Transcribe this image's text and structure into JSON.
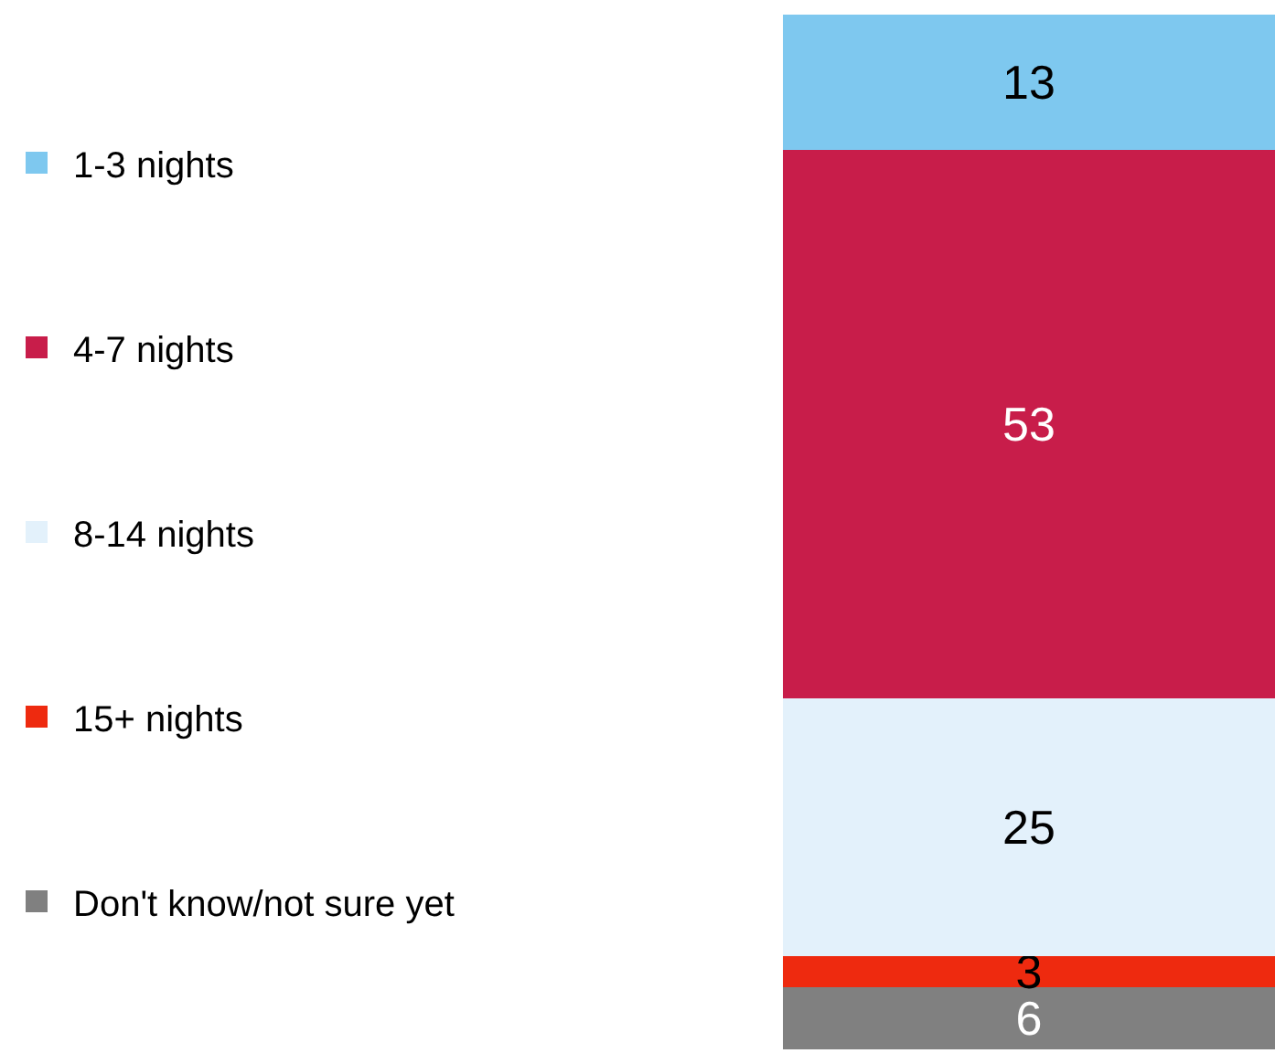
{
  "chart_data": {
    "type": "bar",
    "stacked": true,
    "data_labels": true,
    "legend": "left",
    "categories": [
      null
    ],
    "series": [
      {
        "name": "Don't know/not sure yet",
        "color": "#808080",
        "values": [
          6
        ]
      },
      {
        "name": "15+ nights",
        "color": "#ee2a0f",
        "values": [
          3
        ]
      },
      {
        "name": "8-14 nights",
        "color": "#e3f1fb",
        "values": [
          25
        ]
      },
      {
        "name": "4-7 nights",
        "color": "#c81d4a",
        "values": [
          53
        ]
      },
      {
        "name": "1-3 nights",
        "color": "#7ec8ef",
        "values": [
          13
        ]
      }
    ]
  }
}
